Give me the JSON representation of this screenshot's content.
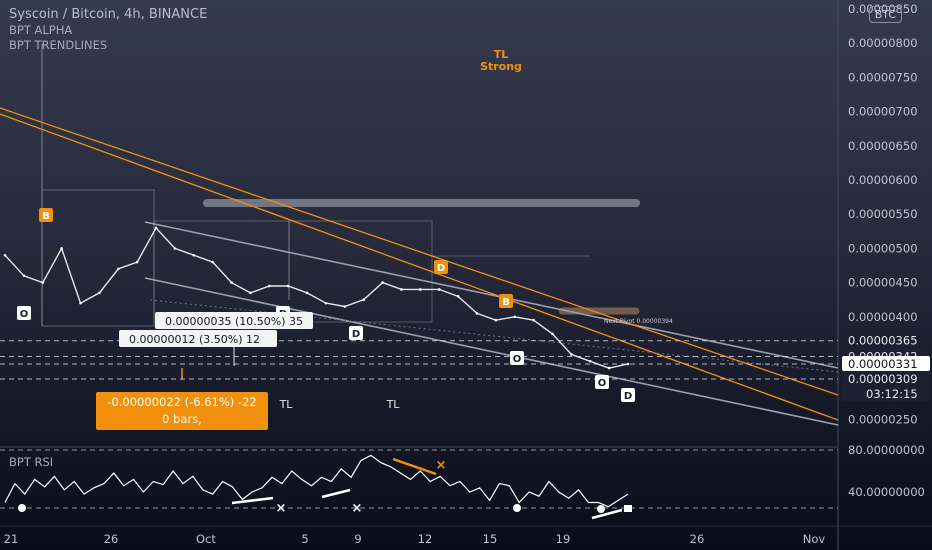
{
  "header": {
    "symbol_line": "Syscoin / Bitcoin, 4h, BINANCE",
    "indicators": [
      "BPT ALPHA",
      "BPT TRENDLINES"
    ],
    "currency_badge": "BTC"
  },
  "chart_data": {
    "type": "line",
    "title": "Syscoin / Bitcoin, 4h, BINANCE",
    "y_axis": {
      "ticks": [
        "0.00000850",
        "0.00000800",
        "0.00000750",
        "0.00000700",
        "0.00000650",
        "0.00000600",
        "0.00000550",
        "0.00000500",
        "0.00000450",
        "0.00000400",
        "0.00000250"
      ],
      "range": [
        2.4e-06,
        8.5e-06
      ]
    },
    "x_axis": {
      "ticks": [
        "21",
        "26",
        "Oct",
        "5",
        "9",
        "12",
        "15",
        "19",
        "26",
        "Nov"
      ]
    },
    "price_labels": [
      {
        "text": "0.00000365",
        "value": 3.65e-06
      },
      {
        "text": "0.00000342",
        "value": 3.42e-06
      },
      {
        "text": "0.00000331",
        "value": 3.31e-06,
        "highlight": true
      },
      {
        "text": "0.00000309",
        "value": 3.09e-06
      }
    ],
    "countdown": "03:12:15",
    "price_series": {
      "x": [
        "Sep 20",
        "Sep 21",
        "Sep 22",
        "Sep 23",
        "Sep 24",
        "Sep 25",
        "Sep 26",
        "Sep 27",
        "Sep 28",
        "Sep 29",
        "Sep 30",
        "Oct 1",
        "Oct 2",
        "Oct 3",
        "Oct 4",
        "Oct 5",
        "Oct 6",
        "Oct 7",
        "Oct 8",
        "Oct 9",
        "Oct 10",
        "Oct 11",
        "Oct 12",
        "Oct 13",
        "Oct 14",
        "Oct 15",
        "Oct 16",
        "Oct 17",
        "Oct 18",
        "Oct 19",
        "Oct 20",
        "Oct 21",
        "Oct 22",
        "Oct 23"
      ],
      "y": [
        4.9e-06,
        4.6e-06,
        4.5e-06,
        5e-06,
        4.2e-06,
        4.35e-06,
        4.7e-06,
        4.8e-06,
        5.3e-06,
        5e-06,
        4.9e-06,
        4.8e-06,
        4.5e-06,
        4.35e-06,
        4.45e-06,
        4.45e-06,
        4.35e-06,
        4.2e-06,
        4.15e-06,
        4.25e-06,
        4.5e-06,
        4.4e-06,
        4.4e-06,
        4.4e-06,
        4.3e-06,
        4.05e-06,
        3.95e-06,
        4e-06,
        3.95e-06,
        3.75e-06,
        3.45e-06,
        3.35e-06,
        3.25e-06,
        3.31e-06
      ]
    },
    "signal_markers": [
      {
        "label": "B",
        "color": "#f0900d",
        "x": "Sep 22"
      },
      {
        "label": "O",
        "color": "#ffffff",
        "x": "Sep 21"
      },
      {
        "label": "D",
        "color": "#ffffff",
        "x": "Oct 4"
      },
      {
        "label": "D",
        "color": "#ffffff",
        "x": "Oct 9"
      },
      {
        "label": "D",
        "color": "#f0900d",
        "x": "Oct 13"
      },
      {
        "label": "B",
        "color": "#f0900d",
        "x": "Oct 16"
      },
      {
        "label": "O",
        "color": "#ffffff",
        "x": "Oct 17"
      },
      {
        "label": "O",
        "color": "#ffffff",
        "x": "Oct 21"
      },
      {
        "label": "D",
        "color": "#ffffff",
        "x": "Oct 22"
      }
    ],
    "annotations": {
      "tl_strong": [
        "TL",
        "Strong"
      ],
      "tl_labels": [
        "TL",
        "TL",
        "TL"
      ],
      "next_pivot": "Next Pivot 0.00000394",
      "measure_1": "0.00000035 (10.50%) 35",
      "measure_2": "0.00000012 (3.50%) 12",
      "measure_3_line1": "-0.00000022 (-6.61%) -22",
      "measure_3_line2": "0 bars,"
    },
    "rsi": {
      "title": "BPT RSI",
      "ticks": [
        "80.00000000",
        "40.00000000"
      ],
      "range": [
        0,
        100
      ],
      "values": [
        30,
        48,
        38,
        52,
        45,
        55,
        42,
        50,
        38,
        44,
        48,
        58,
        46,
        52,
        40,
        50,
        47,
        60,
        48,
        55,
        42,
        38,
        50,
        45,
        33,
        40,
        44,
        54,
        48,
        60,
        52,
        46,
        54,
        50,
        62,
        54,
        70,
        75,
        68,
        64,
        58,
        52,
        60,
        50,
        55,
        46,
        50,
        40,
        44,
        32,
        48,
        46,
        30,
        40,
        36,
        50,
        40,
        34,
        42,
        30,
        30,
        26,
        32,
        38
      ]
    },
    "colors": {
      "accent": "#f0900d",
      "line": "#ffffff",
      "channel": "#9aa0ae"
    }
  }
}
